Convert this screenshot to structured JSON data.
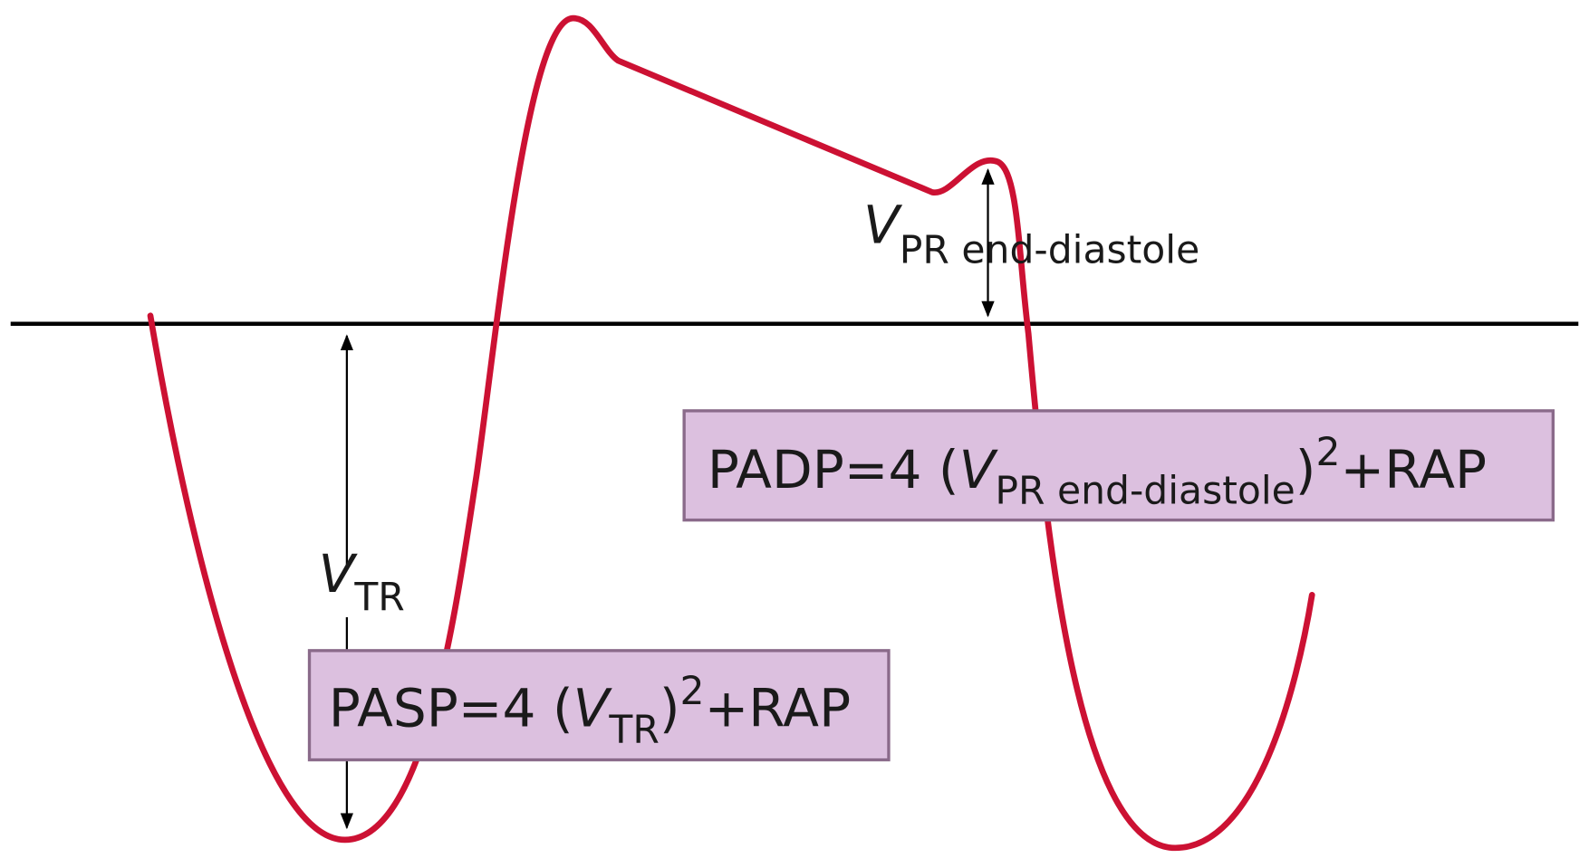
{
  "labels": {
    "vpr": {
      "symbol": "V",
      "subscript": "PR end-diastole"
    },
    "vtr": {
      "symbol": "V",
      "subscript": "TR"
    }
  },
  "formulas": {
    "padp": {
      "lhs": "PADP=4 (",
      "symbol": "V",
      "subscript": "PR end-diastole",
      "close": ")",
      "exponent": "2",
      "rhs": "+RAP"
    },
    "pasp": {
      "lhs": "PASP=4 (",
      "symbol": "V",
      "subscript": "TR",
      "close": ")",
      "exponent": "2",
      "rhs": "+RAP"
    }
  }
}
